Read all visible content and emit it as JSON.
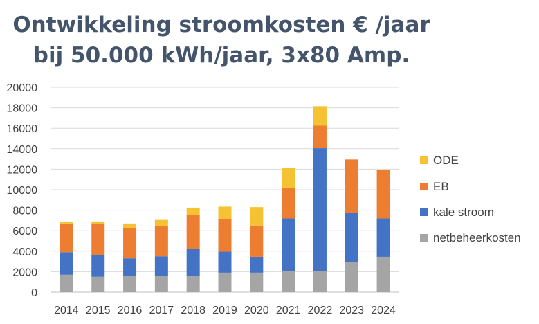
{
  "chart_data": {
    "type": "bar",
    "stacked": true,
    "title": "Ontwikkeling stroomkosten € /jaar",
    "subtitle": "bij 50.000 kWh/jaar, 3x80 Amp.",
    "xlabel": "",
    "ylabel": "",
    "ylim": [
      0,
      20000
    ],
    "yticks": [
      0,
      2000,
      4000,
      6000,
      8000,
      10000,
      12000,
      14000,
      16000,
      18000,
      20000
    ],
    "grid": true,
    "legend_position": "right",
    "categories": [
      "2014",
      "2015",
      "2016",
      "2017",
      "2018",
      "2019",
      "2020",
      "2021",
      "2022",
      "2023",
      "2024"
    ],
    "series": [
      {
        "name": "netbeheerkosten",
        "color": "#a5a5a5",
        "values": [
          1700,
          1500,
          1600,
          1550,
          1600,
          1900,
          1900,
          2050,
          2050,
          2900,
          3450
        ]
      },
      {
        "name": "kale stroom",
        "color": "#4472c4",
        "values": [
          2200,
          2150,
          1700,
          1950,
          2600,
          2050,
          1550,
          5150,
          12000,
          4850,
          3750
        ]
      },
      {
        "name": "EB",
        "color": "#ed7d31",
        "values": [
          2800,
          3000,
          2950,
          2950,
          3300,
          3150,
          3050,
          3000,
          2200,
          5200,
          4700
        ]
      },
      {
        "name": "ODE",
        "color": "#f4c232",
        "values": [
          150,
          250,
          450,
          600,
          750,
          1250,
          1800,
          1950,
          1900,
          0,
          0
        ]
      }
    ]
  }
}
